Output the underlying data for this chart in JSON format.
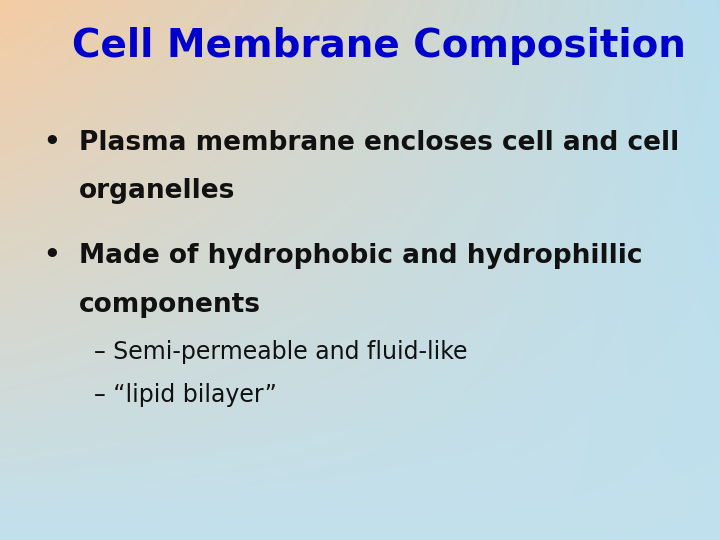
{
  "title": "Cell Membrane Composition",
  "title_color": "#0000CC",
  "title_fontsize": 28,
  "title_fontweight": "bold",
  "bullet1_line1": "Plasma membrane encloses cell and cell",
  "bullet1_line2": "organelles",
  "bullet2_line1": "Made of hydrophobic and hydrophillic",
  "bullet2_line2": "components",
  "sub_bullet1": "– Semi-permeable and fluid-like",
  "sub_bullet2": "– “lipid bilayer”",
  "bullet_fontsize": 19,
  "sub_bullet_fontsize": 17,
  "text_color": "#111111",
  "tl": [
    0.96,
    0.8,
    0.64
  ],
  "tr": [
    0.72,
    0.87,
    0.93
  ],
  "bl": [
    0.76,
    0.88,
    0.93
  ],
  "br": [
    0.76,
    0.88,
    0.93
  ]
}
